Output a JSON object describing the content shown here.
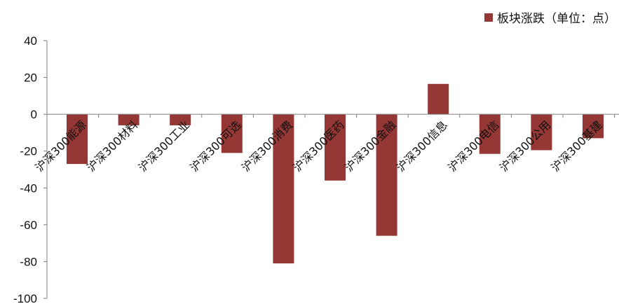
{
  "legend": {
    "label": "板块涨跌（单位：点）"
  },
  "colors": {
    "bar": "#953735",
    "axis": "#7f7f7f"
  },
  "chart_data": {
    "type": "bar",
    "categories": [
      "沪深300能源",
      "沪深300材料",
      "沪深300工业",
      "沪深300可选",
      "沪深300消费",
      "沪深300医药",
      "沪深300金融",
      "沪深300信息",
      "沪深300电信",
      "沪深300公用",
      "沪深300基建"
    ],
    "series": [
      {
        "name": "板块涨跌（单位：点）",
        "values": [
          -27,
          -6,
          -6,
          -21,
          -81,
          -36,
          -66,
          16.5,
          -21.5,
          -19.5,
          -13
        ]
      }
    ],
    "ylim": [
      -100,
      40
    ],
    "yticks": [
      40,
      20,
      0,
      -20,
      -40,
      -60,
      -80,
      -100
    ],
    "legend_position": "top-right",
    "grid": false
  }
}
